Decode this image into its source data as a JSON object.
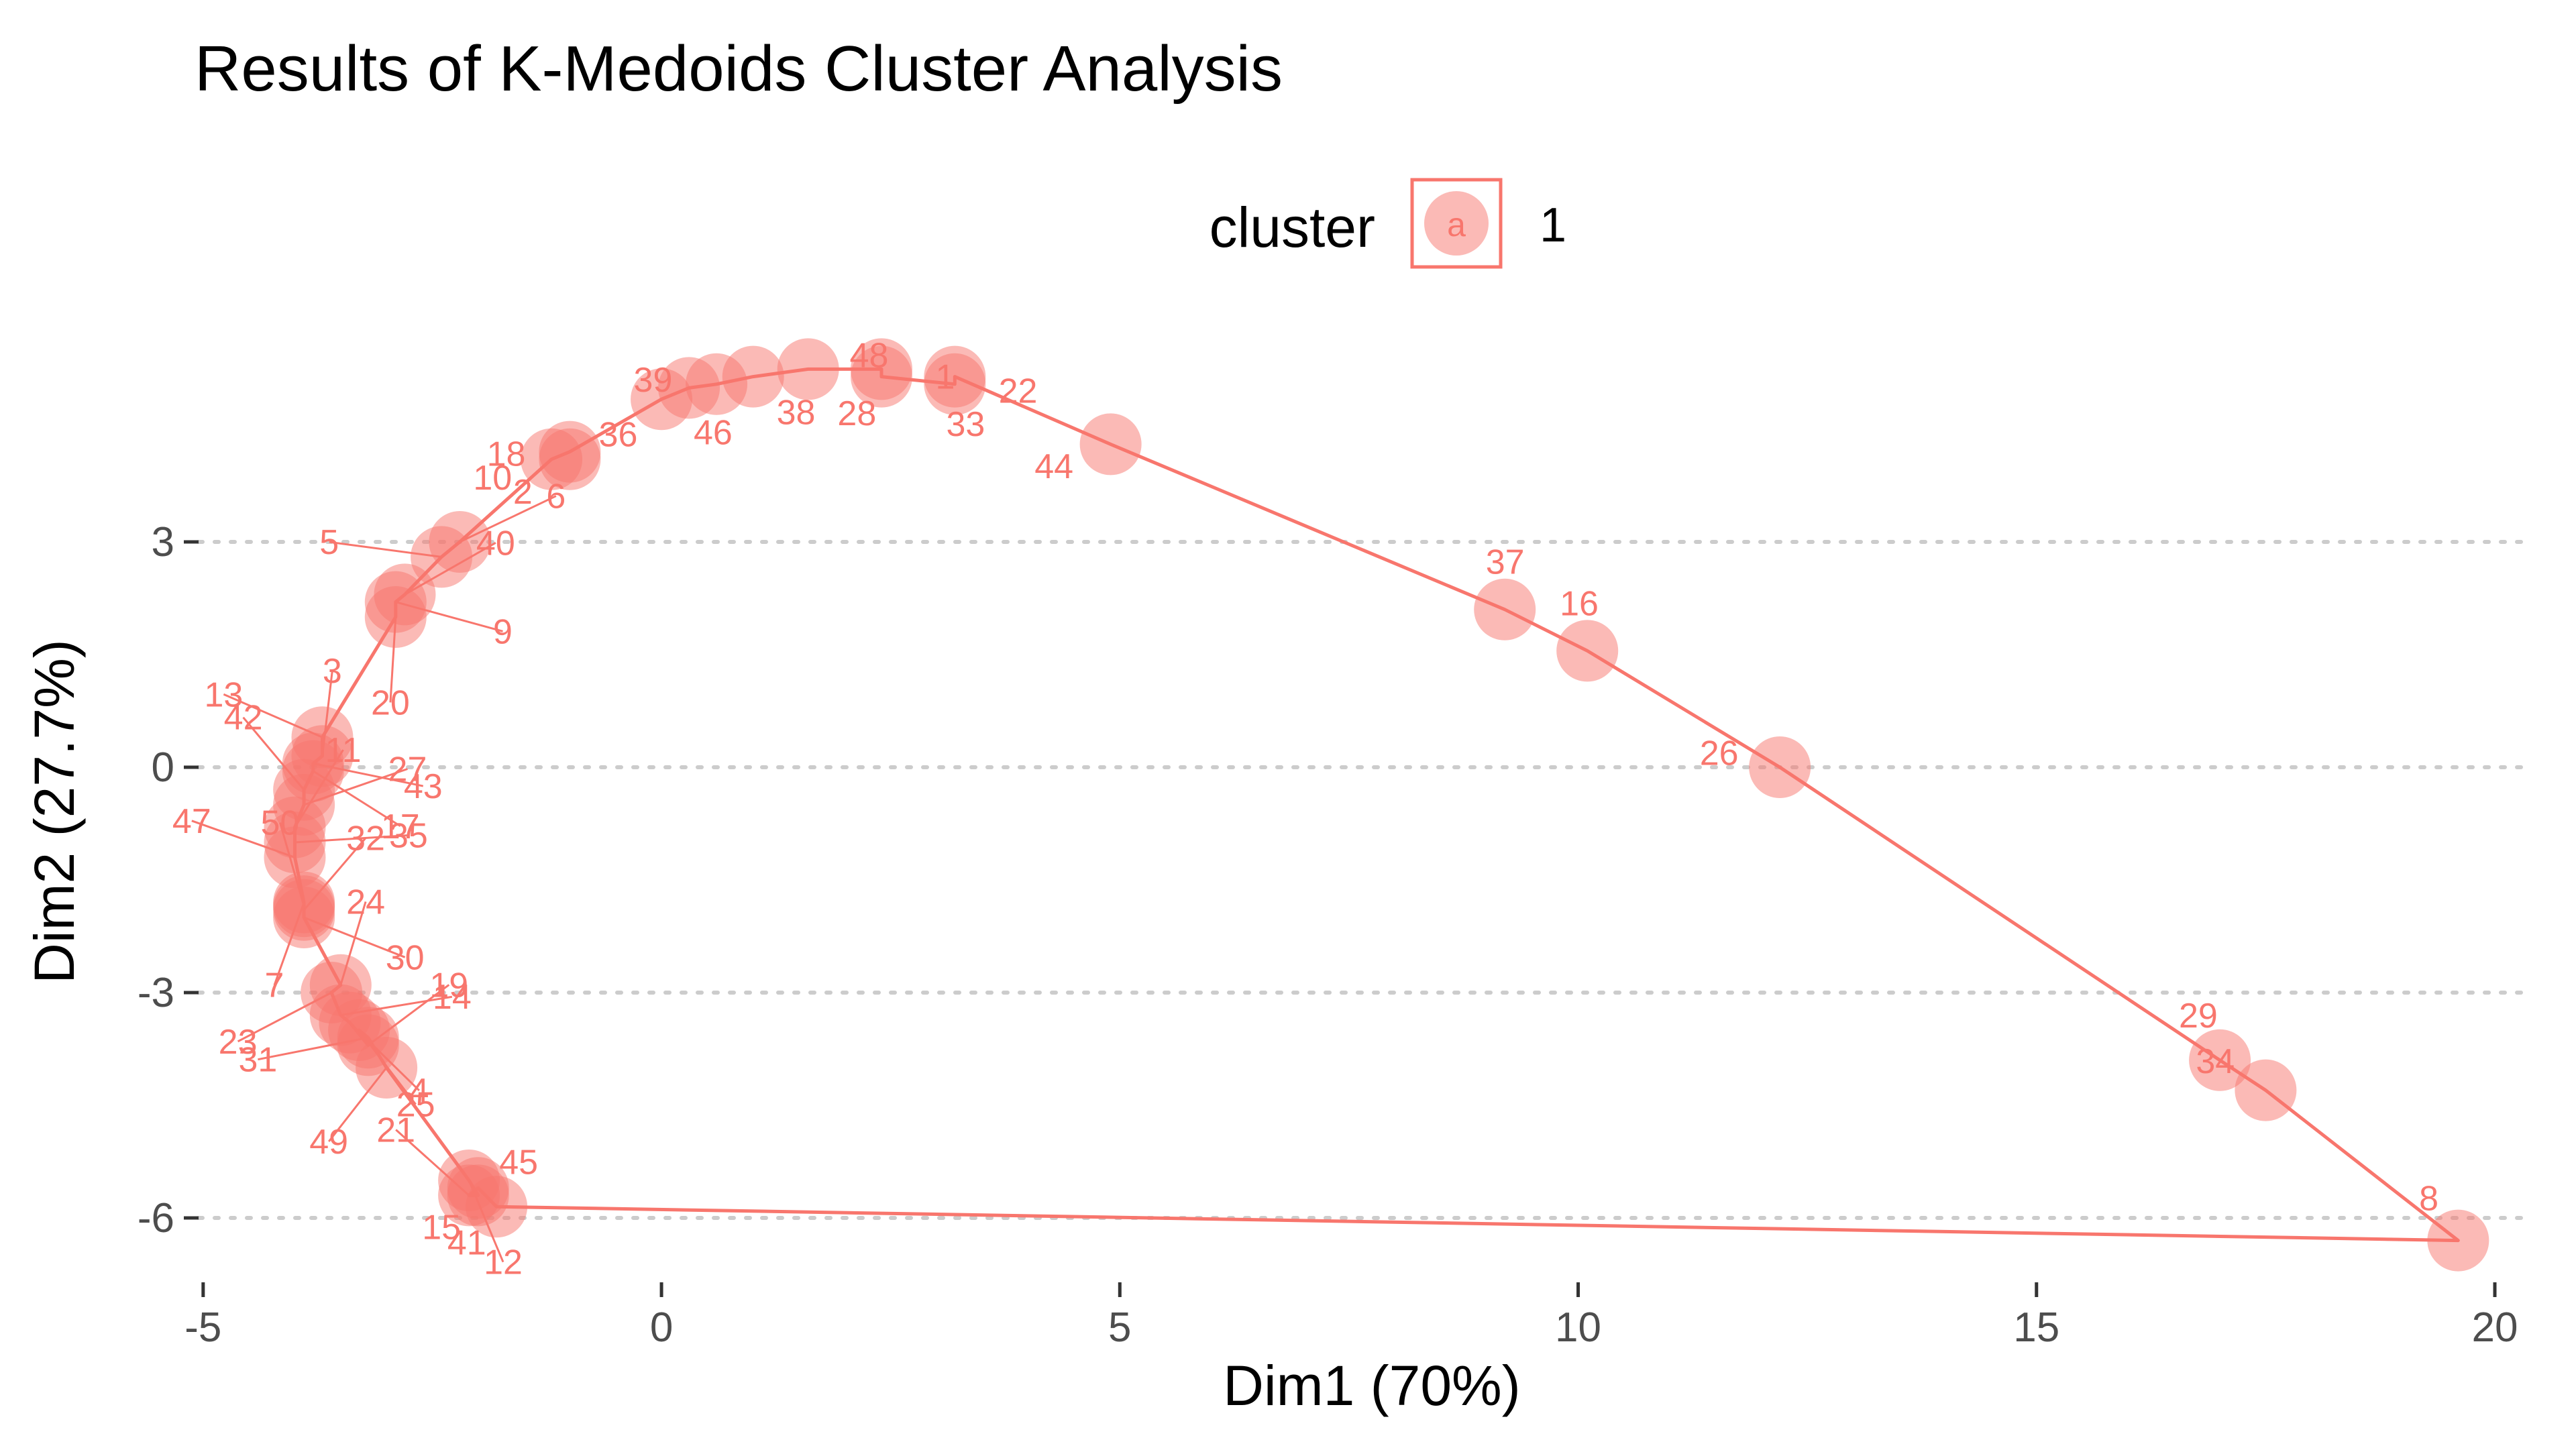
{
  "chart_data": {
    "type": "scatter",
    "title": "Results of K-Medoids Cluster Analysis",
    "xlabel": "Dim1 (70%)",
    "ylabel": "Dim2 (27.7%)",
    "xlim": [
      -5.05,
      20.3
    ],
    "ylim": [
      -6.75,
      5.75
    ],
    "xticks": [
      -5,
      0,
      5,
      10,
      15,
      20
    ],
    "yticks": [
      -6,
      -3,
      0,
      3
    ],
    "x_tick_labels": [
      "-5",
      "0",
      "5",
      "10",
      "15",
      "20"
    ],
    "y_tick_labels": [
      "-6",
      "-3",
      "0",
      "3"
    ],
    "grid": "horizontal-dotted",
    "legend": {
      "title": "cluster",
      "position": "top",
      "key_glyph": "a",
      "entries": [
        "1"
      ]
    },
    "colors": {
      "cluster_1": "#F8766D",
      "grid": "#cccccc",
      "axis_text": "#4d4d4d"
    },
    "series": [
      {
        "name": "1",
        "points": [
          {
            "label": "1",
            "x": 2.4,
            "y": 5.2
          },
          {
            "label": "2",
            "x": -1.0,
            "y": 4.1
          },
          {
            "label": "3",
            "x": -3.7,
            "y": 0.15
          },
          {
            "label": "4",
            "x": -3.4,
            "y": -3.4
          },
          {
            "label": "5",
            "x": -2.4,
            "y": 2.8
          },
          {
            "label": "6",
            "x": -2.2,
            "y": 3.0
          },
          {
            "label": "7",
            "x": -3.9,
            "y": -1.8
          },
          {
            "label": "8",
            "x": 19.6,
            "y": -6.3
          },
          {
            "label": "9",
            "x": -2.9,
            "y": 2.2
          },
          {
            "label": "10",
            "x": -1.2,
            "y": 4.1
          },
          {
            "label": "11",
            "x": -4.0,
            "y": -0.8
          },
          {
            "label": "12",
            "x": -2.1,
            "y": -5.5
          },
          {
            "label": "13",
            "x": -3.7,
            "y": 0.4
          },
          {
            "label": "14",
            "x": -3.5,
            "y": -3.3
          },
          {
            "label": "15",
            "x": -2.0,
            "y": -5.6
          },
          {
            "label": "16",
            "x": 10.1,
            "y": 1.55
          },
          {
            "label": "17",
            "x": -3.8,
            "y": -0.05
          },
          {
            "label": "18",
            "x": -1.0,
            "y": 4.2
          },
          {
            "label": "19",
            "x": -3.2,
            "y": -3.7
          },
          {
            "label": "20",
            "x": -2.9,
            "y": 2.0
          },
          {
            "label": "21",
            "x": -2.1,
            "y": -5.7
          },
          {
            "label": "22",
            "x": 3.2,
            "y": 5.1
          },
          {
            "label": "23",
            "x": -3.6,
            "y": -3.0
          },
          {
            "label": "24",
            "x": -3.5,
            "y": -2.9
          },
          {
            "label": "25",
            "x": -3.3,
            "y": -3.5
          },
          {
            "label": "26",
            "x": 12.2,
            "y": 0.0
          },
          {
            "label": "27",
            "x": -3.9,
            "y": -0.5
          },
          {
            "label": "28",
            "x": 2.4,
            "y": 5.3
          },
          {
            "label": "29",
            "x": 17.0,
            "y": -3.9
          },
          {
            "label": "30",
            "x": -3.9,
            "y": -2.0
          },
          {
            "label": "31",
            "x": -3.2,
            "y": -3.6
          },
          {
            "label": "32",
            "x": -3.9,
            "y": -1.9
          },
          {
            "label": "33",
            "x": 3.2,
            "y": 5.2
          },
          {
            "label": "34",
            "x": 17.5,
            "y": -4.3
          },
          {
            "label": "35",
            "x": -4.0,
            "y": -1.0
          },
          {
            "label": "36",
            "x": 0.0,
            "y": 4.9
          },
          {
            "label": "37",
            "x": 9.2,
            "y": 2.1
          },
          {
            "label": "38",
            "x": 1.0,
            "y": 5.2
          },
          {
            "label": "39",
            "x": 0.6,
            "y": 5.1
          },
          {
            "label": "40",
            "x": -2.8,
            "y": 2.3
          },
          {
            "label": "41",
            "x": -2.0,
            "y": -5.7
          },
          {
            "label": "42",
            "x": -3.9,
            "y": -0.3
          },
          {
            "label": "43",
            "x": -3.8,
            "y": 0.05
          },
          {
            "label": "44",
            "x": 4.9,
            "y": 4.3
          },
          {
            "label": "45",
            "x": -1.8,
            "y": -5.85
          },
          {
            "label": "46",
            "x": 0.3,
            "y": 5.05
          },
          {
            "label": "47",
            "x": -4.0,
            "y": -1.2
          },
          {
            "label": "48",
            "x": 1.6,
            "y": 5.3
          },
          {
            "label": "49",
            "x": -3.0,
            "y": -4.0
          },
          {
            "label": "50",
            "x": -3.9,
            "y": -1.85
          }
        ]
      }
    ],
    "hull": [
      "8",
      "34",
      "29",
      "26",
      "16",
      "37",
      "44",
      "33",
      "22",
      "1",
      "28",
      "48",
      "38",
      "39",
      "46",
      "36",
      "18",
      "10",
      "6",
      "5",
      "40",
      "9",
      "20",
      "13",
      "3",
      "43",
      "17",
      "42",
      "27",
      "11",
      "35",
      "47",
      "7",
      "50",
      "32",
      "30",
      "24",
      "23",
      "14",
      "4",
      "19",
      "25",
      "31",
      "49",
      "12",
      "41",
      "21",
      "15",
      "45"
    ]
  }
}
